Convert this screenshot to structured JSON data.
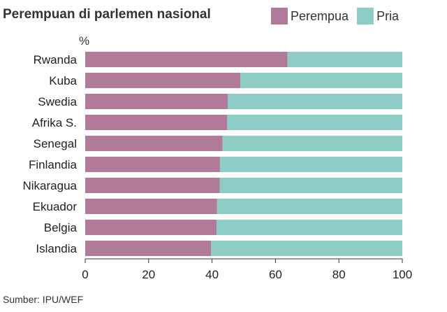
{
  "title": "Perempuan di parlemen nasional",
  "unit_label": "%",
  "source": "Sumber: IPU/WEF",
  "chart_data": {
    "type": "bar",
    "orientation": "horizontal",
    "stacked": true,
    "title": "Perempuan di parlemen nasional",
    "categories": [
      "Rwanda",
      "Kuba",
      "Swedia",
      "Afrika S.",
      "Senegal",
      "Finlandia",
      "Nikaragua",
      "Ekuador",
      "Belgia",
      "Islandia"
    ],
    "series": [
      {
        "name": "Perempua",
        "color": "#b07a98",
        "values": [
          63.8,
          48.9,
          45.0,
          44.8,
          43.3,
          42.5,
          42.4,
          41.6,
          41.4,
          39.7
        ]
      },
      {
        "name": "Pria",
        "color": "#8ecdc6",
        "values": [
          36.2,
          51.1,
          55.0,
          55.2,
          56.7,
          57.5,
          57.6,
          58.4,
          58.6,
          60.3
        ]
      }
    ],
    "xlim": [
      0,
      100
    ],
    "xticks": [
      0,
      20,
      40,
      60,
      80,
      100
    ],
    "xlabel": "",
    "ylabel": "%",
    "grid": false,
    "legend": "top-right"
  }
}
